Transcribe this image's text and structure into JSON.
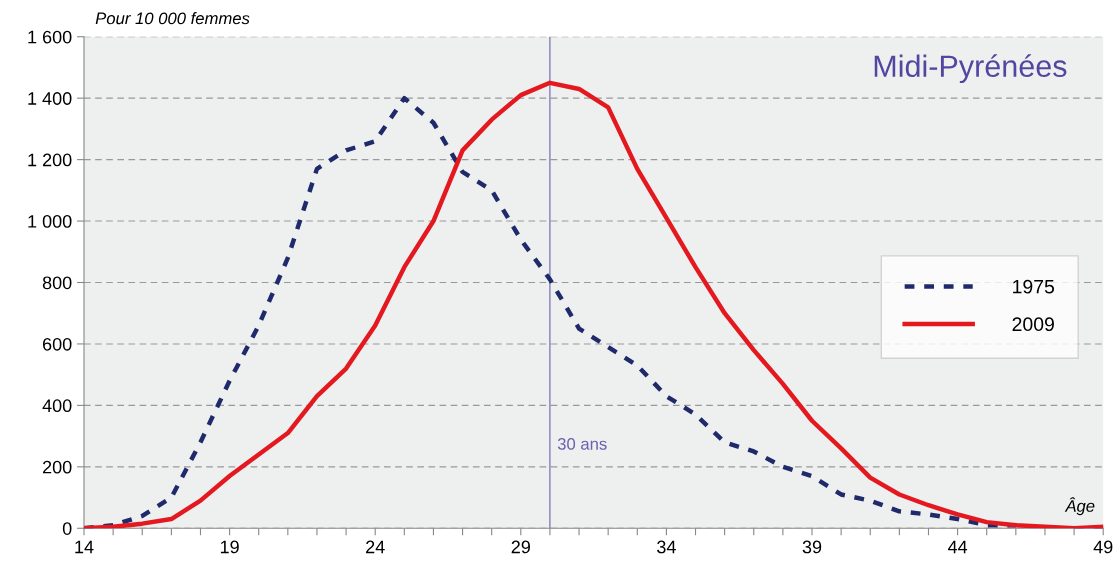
{
  "chart_data": {
    "type": "line",
    "title": "Midi-Pyrénées",
    "ylabel": "Pour 10 000 femmes",
    "xlabel": "Âge",
    "x": [
      14,
      15,
      16,
      17,
      18,
      19,
      20,
      21,
      22,
      23,
      24,
      25,
      26,
      27,
      28,
      29,
      30,
      31,
      32,
      33,
      34,
      35,
      36,
      37,
      38,
      39,
      40,
      41,
      42,
      43,
      44,
      45,
      46,
      47,
      48,
      49
    ],
    "series": [
      {
        "name": "1975",
        "color": "#1f2a6b",
        "line_style": "dashed",
        "values": [
          0,
          10,
          40,
          100,
          280,
          480,
          660,
          880,
          1170,
          1230,
          1260,
          1400,
          1320,
          1160,
          1100,
          940,
          810,
          650,
          590,
          530,
          430,
          370,
          280,
          250,
          200,
          170,
          110,
          90,
          55,
          45,
          30,
          10,
          10,
          null,
          0,
          0
        ]
      },
      {
        "name": "2009",
        "color": "#e3191f",
        "line_style": "solid",
        "values": [
          0,
          5,
          15,
          30,
          90,
          170,
          240,
          310,
          430,
          520,
          660,
          850,
          1000,
          1230,
          1330,
          1410,
          1450,
          1430,
          1370,
          1170,
          1010,
          850,
          700,
          580,
          470,
          350,
          260,
          165,
          110,
          75,
          45,
          20,
          10,
          5,
          0,
          5
        ]
      }
    ],
    "xlim": [
      14,
      49
    ],
    "xticks": [
      14,
      {
        "value": 15,
        "label": null
      },
      {
        "value": 16,
        "label": null
      },
      {
        "value": 17,
        "label": null
      },
      {
        "value": 18,
        "label": null
      },
      19,
      {
        "value": 20,
        "label": null
      },
      {
        "value": 21,
        "label": null
      },
      {
        "value": 22,
        "label": null
      },
      {
        "value": 23,
        "label": null
      },
      24,
      {
        "value": 25,
        "label": null
      },
      {
        "value": 26,
        "label": null
      },
      {
        "value": 27,
        "label": null
      },
      {
        "value": 28,
        "label": null
      },
      29,
      {
        "value": 30,
        "label": null
      },
      {
        "value": 31,
        "label": null
      },
      {
        "value": 32,
        "label": null
      },
      {
        "value": 33,
        "label": null
      },
      34,
      {
        "value": 35,
        "label": null
      },
      {
        "value": 36,
        "label": null
      },
      {
        "value": 37,
        "label": null
      },
      {
        "value": 38,
        "label": null
      },
      39,
      {
        "value": 40,
        "label": null
      },
      {
        "value": 41,
        "label": null
      },
      {
        "value": 42,
        "label": null
      },
      {
        "value": 43,
        "label": null
      },
      44,
      {
        "value": 45,
        "label": null
      },
      {
        "value": 46,
        "label": null
      },
      {
        "value": 47,
        "label": null
      },
      {
        "value": 48,
        "label": null
      },
      49
    ],
    "ylim": [
      0,
      1600
    ],
    "yticks": [
      0,
      200,
      400,
      600,
      800,
      {
        "value": 1000,
        "label": "1 000"
      },
      {
        "value": 1200,
        "label": "1 200"
      },
      {
        "value": 1400,
        "label": "1 400"
      },
      {
        "value": 1600,
        "label": "1 600"
      }
    ],
    "grid": "y",
    "legend": "right",
    "ref_lines": [
      {
        "axis": "x",
        "value": 30,
        "label": "30 ans",
        "color": "#6a5fb0"
      }
    ]
  }
}
